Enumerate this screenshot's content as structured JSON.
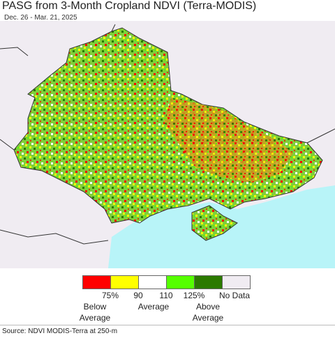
{
  "header": {
    "title": "PASG from 3-Month Cropland NDVI (Terra-MODIS)",
    "subtitle": "Dec. 26 - Mar. 21, 2025"
  },
  "legend": {
    "swatches": [
      {
        "color": "#ff0000"
      },
      {
        "color": "#ffff00"
      },
      {
        "color": "#ffffff"
      },
      {
        "color": "#55ff00"
      },
      {
        "color": "#2b7a00"
      },
      {
        "color": "#f0ecf2"
      }
    ],
    "tick_labels": [
      "75%",
      "90",
      "110",
      "125%"
    ],
    "no_data_label": "No Data",
    "class_labels": [
      "Below Average",
      "Average",
      "Above Average"
    ]
  },
  "source": "Source: NDVI MODIS-Terra at 250-m"
}
